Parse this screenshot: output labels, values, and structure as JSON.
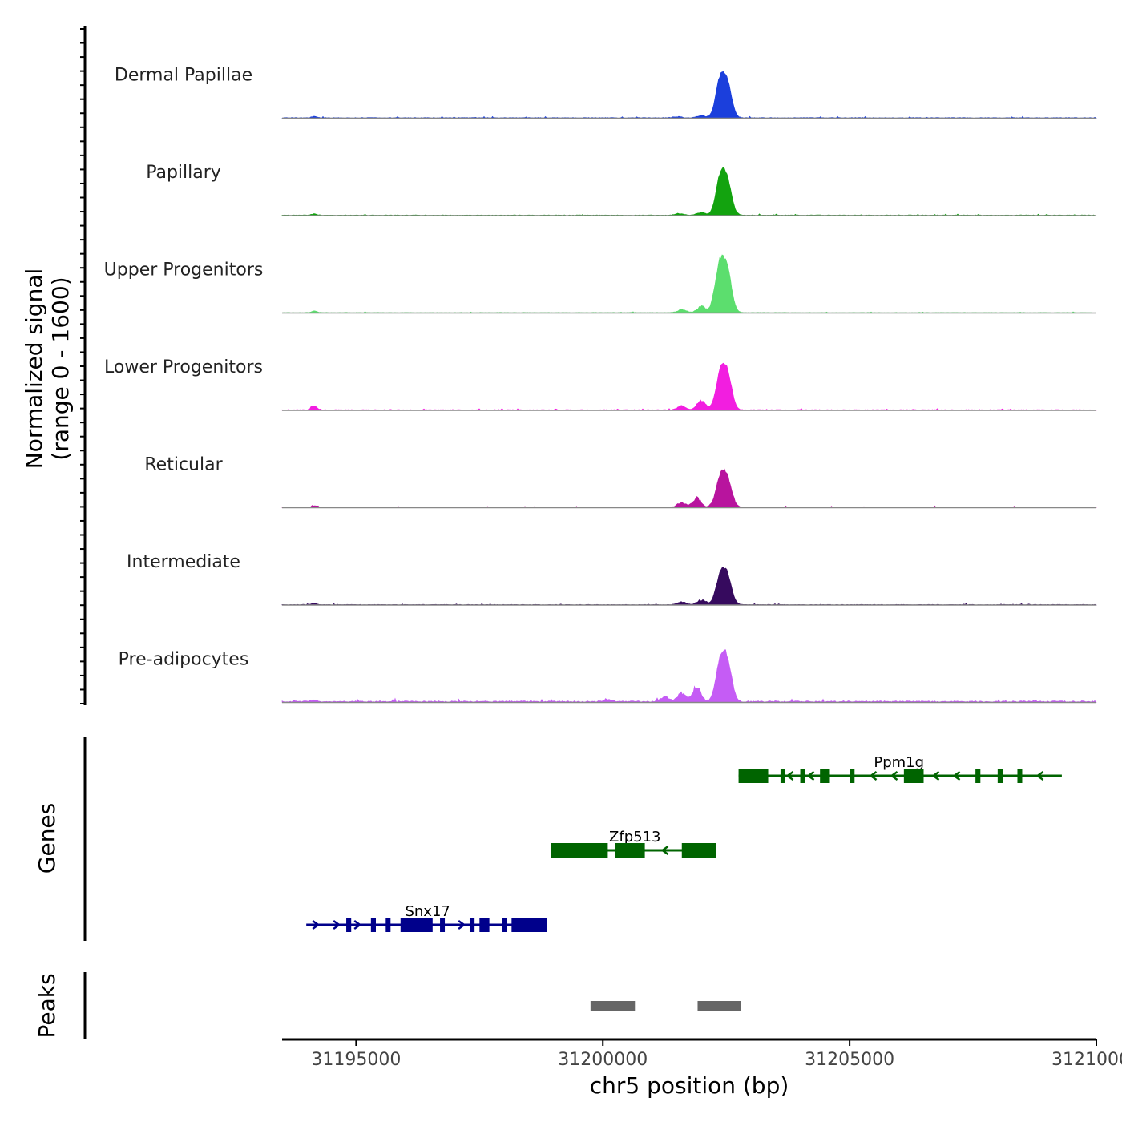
{
  "chart_data": {
    "type": "area",
    "ylabel": "Normalized signal",
    "ylabel_range": "(range 0 - 1600)",
    "yrange": [
      0,
      1600
    ],
    "xlabel": "chr5 position (bp)",
    "xlim": [
      31193500,
      31210000
    ],
    "xticks": [
      31195000,
      31200000,
      31205000,
      31210000
    ],
    "xtick_labels": [
      "31195000",
      "31200000",
      "31205000",
      "31210000"
    ],
    "tracks": [
      {
        "name": "Dermal Papillae",
        "color": "#1b3fdc",
        "peak": 1420,
        "shoulders": [
          [
            31202350,
            130
          ],
          [
            31202000,
            70
          ],
          [
            31201500,
            40
          ]
        ],
        "baseline": 20,
        "left_bump": 40
      },
      {
        "name": "Papillary",
        "color": "#13a30f",
        "peak": 1400,
        "shoulders": [
          [
            31202380,
            140
          ],
          [
            31202000,
            90
          ],
          [
            31201550,
            50
          ]
        ],
        "baseline": 18,
        "left_bump": 40
      },
      {
        "name": "Upper Progenitors",
        "color": "#5cde6e",
        "peak": 1740,
        "shoulders": [
          [
            31202300,
            300
          ],
          [
            31202000,
            200
          ],
          [
            31201600,
            100
          ]
        ],
        "baseline": 15,
        "left_bump": 55
      },
      {
        "name": "Lower Progenitors",
        "color": "#f21ee0",
        "peak": 1500,
        "shoulders": [
          [
            31202000,
            280
          ],
          [
            31201600,
            120
          ]
        ],
        "baseline": 20,
        "left_bump": 120
      },
      {
        "name": "Reticular",
        "color": "#b8149e",
        "peak": 1200,
        "shoulders": [
          [
            31201900,
            280
          ],
          [
            31201600,
            140
          ]
        ],
        "baseline": 18,
        "left_bump": 45
      },
      {
        "name": "Intermediate",
        "color": "#360a5e",
        "peak": 1200,
        "shoulders": [
          [
            31202000,
            150
          ],
          [
            31201600,
            90
          ]
        ],
        "baseline": 16,
        "left_bump": 40
      },
      {
        "name": "Pre-adipocytes",
        "color": "#c55cf5",
        "peak": 1650,
        "shoulders": [
          [
            31201900,
            420
          ],
          [
            31201600,
            250
          ],
          [
            31201250,
            150
          ],
          [
            31200100,
            60
          ]
        ],
        "baseline": 40,
        "left_bump": 55
      }
    ],
    "genes_label": "Genes",
    "genes": [
      {
        "name": "Ppm1g",
        "strand": "-",
        "color": "#006400",
        "start": 31202750,
        "end": 31209300,
        "label_pos": 31206000,
        "exons": [
          [
            31202750,
            31203350
          ],
          [
            31203600,
            31203680
          ],
          [
            31204000,
            31204100
          ],
          [
            31204400,
            31204600
          ],
          [
            31205000,
            31205100
          ],
          [
            31206100,
            31206500
          ],
          [
            31207550,
            31207650
          ],
          [
            31208000,
            31208100
          ],
          [
            31208400,
            31208450
          ]
        ]
      },
      {
        "name": "Zfp513",
        "strand": "-",
        "color": "#006400",
        "start": 31198950,
        "end": 31202300,
        "label_pos": 31200650,
        "exons": [
          [
            31198950,
            31200100
          ],
          [
            31200250,
            31200850
          ],
          [
            31201600,
            31202300
          ]
        ]
      },
      {
        "name": "Snx17",
        "strand": "+",
        "color": "#00008b",
        "start": 31193990,
        "end": 31198870,
        "label_pos": 31196450,
        "exons": [
          [
            31194800,
            31194900
          ],
          [
            31195300,
            31195400
          ],
          [
            31195600,
            31195680
          ],
          [
            31195900,
            31196550
          ],
          [
            31196700,
            31196780
          ],
          [
            31197300,
            31197400
          ],
          [
            31197500,
            31197700
          ],
          [
            31197950,
            31198050
          ],
          [
            31198150,
            31198870
          ]
        ]
      }
    ],
    "peaks_label": "Peaks",
    "peaks": [
      [
        31199750,
        31200650
      ],
      [
        31201920,
        31202800
      ]
    ]
  }
}
